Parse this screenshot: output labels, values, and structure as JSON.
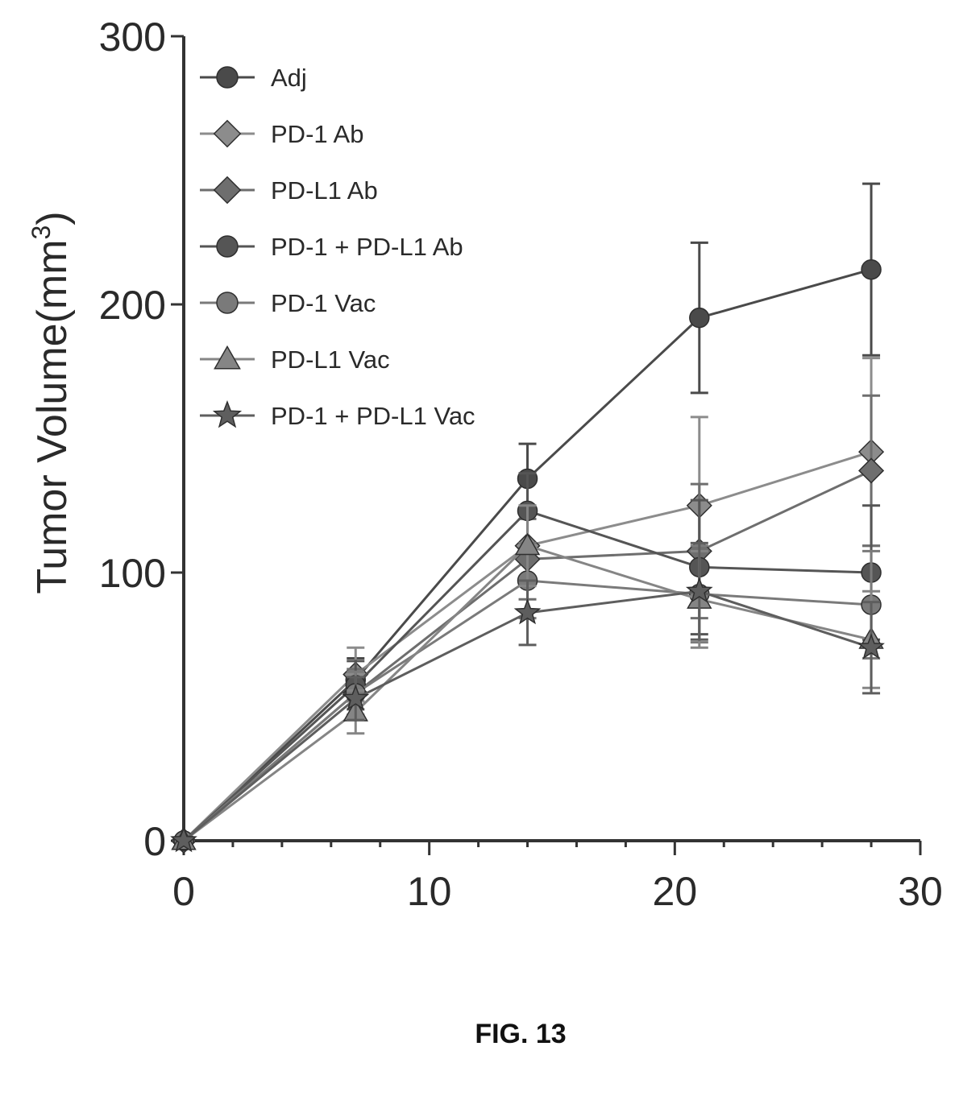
{
  "figure_label": "FIG. 13",
  "chart_data": {
    "type": "line",
    "title": "",
    "xlabel": "",
    "ylabel": "Tumor Volume(mm",
    "ylabel_superscript": "3",
    "ylabel_close": ")",
    "xlim": [
      0,
      30
    ],
    "ylim": [
      0,
      300
    ],
    "xticks": [
      0,
      10,
      20,
      30
    ],
    "yticks": [
      0,
      100,
      200,
      300
    ],
    "xtick_labels": [
      "0",
      "10",
      "20",
      "30"
    ],
    "ytick_labels": [
      "0",
      "100",
      "200",
      "300"
    ],
    "grid": false,
    "legend_position": "top-left",
    "x": [
      0,
      7,
      14,
      21,
      28
    ],
    "series": [
      {
        "name": "Adj",
        "marker": "circle",
        "color": "#4a4a4a",
        "values": [
          0,
          60,
          135,
          195,
          213
        ],
        "errors": [
          0,
          8,
          13,
          28,
          32
        ]
      },
      {
        "name": "PD-1 Ab",
        "marker": "diamond",
        "color": "#8c8c8c",
        "values": [
          0,
          62,
          110,
          125,
          145
        ],
        "errors": [
          0,
          10,
          15,
          33,
          35
        ]
      },
      {
        "name": "PD-L1 Ab",
        "marker": "diamond",
        "color": "#6e6e6e",
        "values": [
          0,
          55,
          105,
          108,
          138
        ],
        "errors": [
          0,
          9,
          15,
          25,
          28
        ]
      },
      {
        "name": "PD-1 + PD-L1 Ab",
        "marker": "circle",
        "color": "#555555",
        "values": [
          0,
          58,
          123,
          102,
          100
        ],
        "errors": [
          0,
          9,
          14,
          25,
          25
        ]
      },
      {
        "name": "PD-1 Vac",
        "marker": "circle",
        "color": "#7a7a7a",
        "values": [
          0,
          55,
          97,
          92,
          88
        ],
        "errors": [
          0,
          8,
          14,
          18,
          20
        ]
      },
      {
        "name": "PD-L1 Vac",
        "marker": "triangle",
        "color": "#858585",
        "values": [
          0,
          48,
          110,
          90,
          75
        ],
        "errors": [
          0,
          8,
          15,
          18,
          18
        ]
      },
      {
        "name": "PD-1 + PD-L1 Vac",
        "marker": "star",
        "color": "#5e5e5e",
        "values": [
          0,
          53,
          85,
          93,
          72
        ],
        "errors": [
          0,
          8,
          12,
          18,
          17
        ]
      }
    ]
  }
}
